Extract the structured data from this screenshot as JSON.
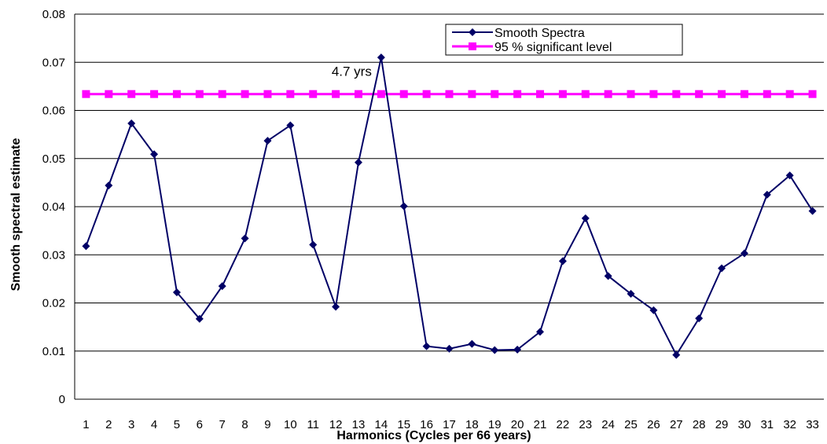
{
  "chart_data": {
    "type": "line",
    "xlabel": "Harmonics (Cycles per 66 years)",
    "ylabel": "Smooth spectral estimate",
    "ylim": [
      0,
      0.08
    ],
    "yticks": [
      "0",
      "0.01",
      "0.02",
      "0.03",
      "0.04",
      "0.05",
      "0.06",
      "0.07",
      "0.08"
    ],
    "grid": "horizontal",
    "legend_position": "top-right",
    "categories": [
      "1",
      "2",
      "3",
      "4",
      "5",
      "6",
      "7",
      "8",
      "9",
      "10",
      "11",
      "12",
      "13",
      "14",
      "15",
      "16",
      "17",
      "18",
      "19",
      "20",
      "21",
      "22",
      "23",
      "24",
      "25",
      "26",
      "27",
      "28",
      "29",
      "30",
      "31",
      "32",
      "33"
    ],
    "series": [
      {
        "name": "Smooth Spectra",
        "color": "#000066",
        "marker": "diamond",
        "values": [
          0.0318,
          0.0444,
          0.0573,
          0.0509,
          0.0222,
          0.0167,
          0.0235,
          0.0334,
          0.0537,
          0.0569,
          0.0321,
          0.0192,
          0.0492,
          0.071,
          0.0401,
          0.011,
          0.0105,
          0.0115,
          0.0102,
          0.0103,
          0.014,
          0.0287,
          0.0376,
          0.0256,
          0.0219,
          0.0185,
          0.0092,
          0.0168,
          0.0272,
          0.0303,
          0.0425,
          0.0465,
          0.0391
        ]
      },
      {
        "name": "95 % significant level",
        "color": "#ff00ff",
        "marker": "square",
        "values": [
          0.0634,
          0.0634,
          0.0634,
          0.0634,
          0.0634,
          0.0634,
          0.0634,
          0.0634,
          0.0634,
          0.0634,
          0.0634,
          0.0634,
          0.0634,
          0.0634,
          0.0634,
          0.0634,
          0.0634,
          0.0634,
          0.0634,
          0.0634,
          0.0634,
          0.0634,
          0.0634,
          0.0634,
          0.0634,
          0.0634,
          0.0634,
          0.0634,
          0.0634,
          0.0634,
          0.0634,
          0.0634,
          0.0634
        ]
      }
    ],
    "annotations": [
      {
        "text": "4.7 yrs",
        "x": "14",
        "y": 0.0672
      }
    ]
  }
}
